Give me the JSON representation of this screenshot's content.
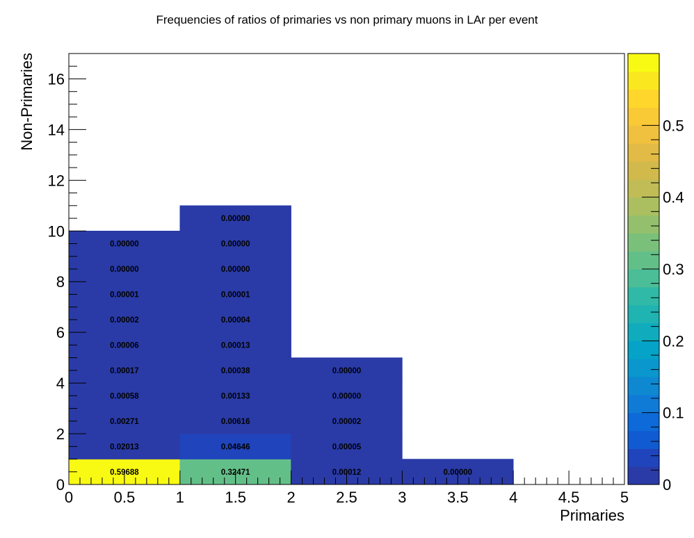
{
  "chart_data": {
    "type": "heatmap",
    "title": "Frequencies of ratios of primaries vs non primary muons in LAr per event",
    "xlabel": "Primaries",
    "ylabel": "Non-Primaries",
    "xlim": [
      0,
      5
    ],
    "ylim": [
      0,
      17
    ],
    "x_ticks": [
      "0",
      "0.5",
      "1",
      "1.5",
      "2",
      "2.5",
      "3",
      "3.5",
      "4",
      "4.5",
      "5"
    ],
    "y_ticks": [
      "0",
      "2",
      "4",
      "6",
      "8",
      "10",
      "12",
      "14",
      "16"
    ],
    "colorbar": {
      "range": [
        0,
        0.6
      ],
      "ticks": [
        "0",
        "0.1",
        "0.2",
        "0.3",
        "0.4",
        "0.5"
      ]
    },
    "cells": [
      {
        "x": 0,
        "y": 0,
        "value": 0.59688,
        "label": "0.59688"
      },
      {
        "x": 0,
        "y": 1,
        "value": 0.02013,
        "label": "0.02013"
      },
      {
        "x": 0,
        "y": 2,
        "value": 0.00271,
        "label": "0.00271"
      },
      {
        "x": 0,
        "y": 3,
        "value": 0.00058,
        "label": "0.00058"
      },
      {
        "x": 0,
        "y": 4,
        "value": 0.00017,
        "label": "0.00017"
      },
      {
        "x": 0,
        "y": 5,
        "value": 6e-05,
        "label": "0.00006"
      },
      {
        "x": 0,
        "y": 6,
        "value": 2e-05,
        "label": "0.00002"
      },
      {
        "x": 0,
        "y": 7,
        "value": 1e-05,
        "label": "0.00001"
      },
      {
        "x": 0,
        "y": 8,
        "value": 0.0,
        "label": "0.00000"
      },
      {
        "x": 0,
        "y": 9,
        "value": 0.0,
        "label": "0.00000"
      },
      {
        "x": 1,
        "y": 0,
        "value": 0.32471,
        "label": "0.32471"
      },
      {
        "x": 1,
        "y": 1,
        "value": 0.04646,
        "label": "0.04646"
      },
      {
        "x": 1,
        "y": 2,
        "value": 0.00616,
        "label": "0.00616"
      },
      {
        "x": 1,
        "y": 3,
        "value": 0.00133,
        "label": "0.00133"
      },
      {
        "x": 1,
        "y": 4,
        "value": 0.00038,
        "label": "0.00038"
      },
      {
        "x": 1,
        "y": 5,
        "value": 0.00013,
        "label": "0.00013"
      },
      {
        "x": 1,
        "y": 6,
        "value": 4e-05,
        "label": "0.00004"
      },
      {
        "x": 1,
        "y": 7,
        "value": 1e-05,
        "label": "0.00001"
      },
      {
        "x": 1,
        "y": 8,
        "value": 0.0,
        "label": "0.00000"
      },
      {
        "x": 1,
        "y": 9,
        "value": 0.0,
        "label": "0.00000"
      },
      {
        "x": 1,
        "y": 10,
        "value": 0.0,
        "label": "0.00000"
      },
      {
        "x": 2,
        "y": 0,
        "value": 0.00012,
        "label": "0.00012"
      },
      {
        "x": 2,
        "y": 1,
        "value": 5e-05,
        "label": "0.00005"
      },
      {
        "x": 2,
        "y": 2,
        "value": 2e-05,
        "label": "0.00002"
      },
      {
        "x": 2,
        "y": 3,
        "value": 0.0,
        "label": "0.00000"
      },
      {
        "x": 2,
        "y": 4,
        "value": 0.0,
        "label": "0.00000"
      },
      {
        "x": 3,
        "y": 0,
        "value": 0.0,
        "label": "0.00000"
      }
    ],
    "palette": [
      "#2a3ba7",
      "#1f44bb",
      "#115bd2",
      "#0d6ad8",
      "#107bd7",
      "#0f88d2",
      "#0997cd",
      "#04a3c7",
      "#10abbd",
      "#1fb3b2",
      "#2fb9a6",
      "#4bbd97",
      "#63bf88",
      "#7bc07a",
      "#94c06d",
      "#abbf60",
      "#c1bc55",
      "#d1ba4b",
      "#e1bb45",
      "#f0c13f",
      "#fac936",
      "#ffd62b",
      "#fbe720",
      "#f9fa13"
    ],
    "colors": {
      "low": "#2a3ba7",
      "high": "#f9fa13"
    }
  }
}
